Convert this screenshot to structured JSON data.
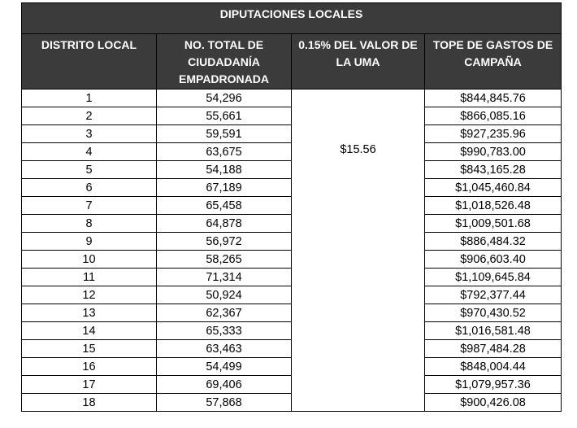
{
  "table": {
    "title": "DIPUTACIONES LOCALES",
    "headers": [
      "DISTRITO LOCAL",
      "NO. TOTAL DE CIUDADANÍA EMPADRONADA",
      "0.15% DEL VALOR DE LA UMA",
      "TOPE DE GASTOS DE CAMPAÑA"
    ],
    "uma_value": "$15.56",
    "rows": [
      {
        "distrito": "1",
        "ciudadania": "54,296",
        "tope": "$844,845.76"
      },
      {
        "distrito": "2",
        "ciudadania": "55,661",
        "tope": "$866,085.16"
      },
      {
        "distrito": "3",
        "ciudadania": "59,591",
        "tope": "$927,235.96"
      },
      {
        "distrito": "4",
        "ciudadania": "63,675",
        "tope": "$990,783.00"
      },
      {
        "distrito": "5",
        "ciudadania": "54,188",
        "tope": "$843,165.28"
      },
      {
        "distrito": "6",
        "ciudadania": "67,189",
        "tope": "$1,045,460.84"
      },
      {
        "distrito": "7",
        "ciudadania": "65,458",
        "tope": "$1,018,526.48"
      },
      {
        "distrito": "8",
        "ciudadania": "64,878",
        "tope": "$1,009,501.68"
      },
      {
        "distrito": "9",
        "ciudadania": "56,972",
        "tope": "$886,484.32"
      },
      {
        "distrito": "10",
        "ciudadania": "58,265",
        "tope": "$906,603.40"
      },
      {
        "distrito": "11",
        "ciudadania": "71,314",
        "tope": "$1,109,645.84"
      },
      {
        "distrito": "12",
        "ciudadania": "50,924",
        "tope": "$792,377.44"
      },
      {
        "distrito": "13",
        "ciudadania": "62,367",
        "tope": "$970,430.52"
      },
      {
        "distrito": "14",
        "ciudadania": "65,333",
        "tope": "$1,016,581.48"
      },
      {
        "distrito": "15",
        "ciudadania": "63,463",
        "tope": "$987,484.28"
      },
      {
        "distrito": "16",
        "ciudadania": "54,499",
        "tope": "$848,004.44"
      },
      {
        "distrito": "17",
        "ciudadania": "69,406",
        "tope": "$1,079,957.36"
      },
      {
        "distrito": "18",
        "ciudadania": "57,868",
        "tope": "$900,426.08"
      }
    ]
  }
}
